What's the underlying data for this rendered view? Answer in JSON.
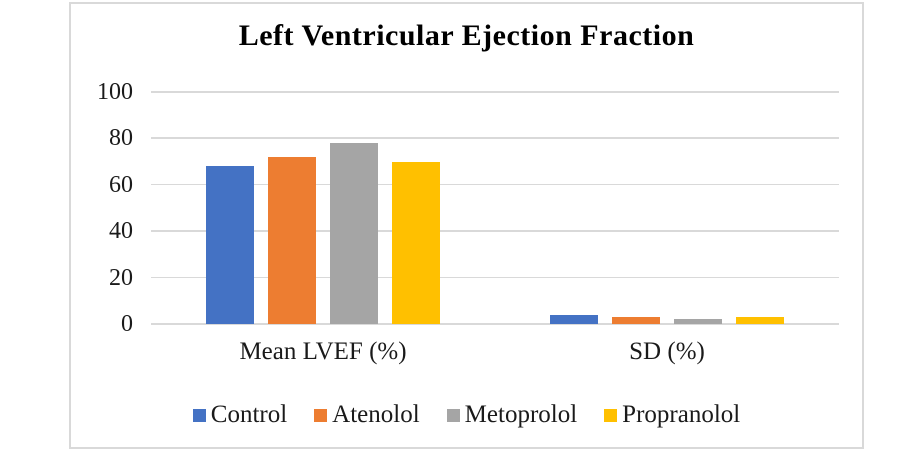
{
  "chart_data": {
    "type": "bar",
    "title": "Left Ventricular Ejection Fraction",
    "categories": [
      "Mean LVEF (%)",
      "SD (%)"
    ],
    "series": [
      {
        "name": "Control",
        "color": "#4472C4",
        "values": [
          68,
          4
        ]
      },
      {
        "name": "Atenolol",
        "color": "#ED7D31",
        "values": [
          72,
          3
        ]
      },
      {
        "name": "Metoprolol",
        "color": "#A5A5A5",
        "values": [
          78,
          2
        ]
      },
      {
        "name": "Propranolol",
        "color": "#FFC000",
        "values": [
          70,
          3
        ]
      }
    ],
    "y_axis": {
      "min": 0,
      "max": 100,
      "tick_step": 20,
      "ticks": [
        100,
        80,
        60,
        40,
        20,
        0
      ]
    },
    "grid": "horizontal",
    "gridline_color": "#D9D9D9",
    "frame_border_color": "#D9D9D9",
    "legend_position": "bottom",
    "text_color": "#1A1A1A"
  }
}
